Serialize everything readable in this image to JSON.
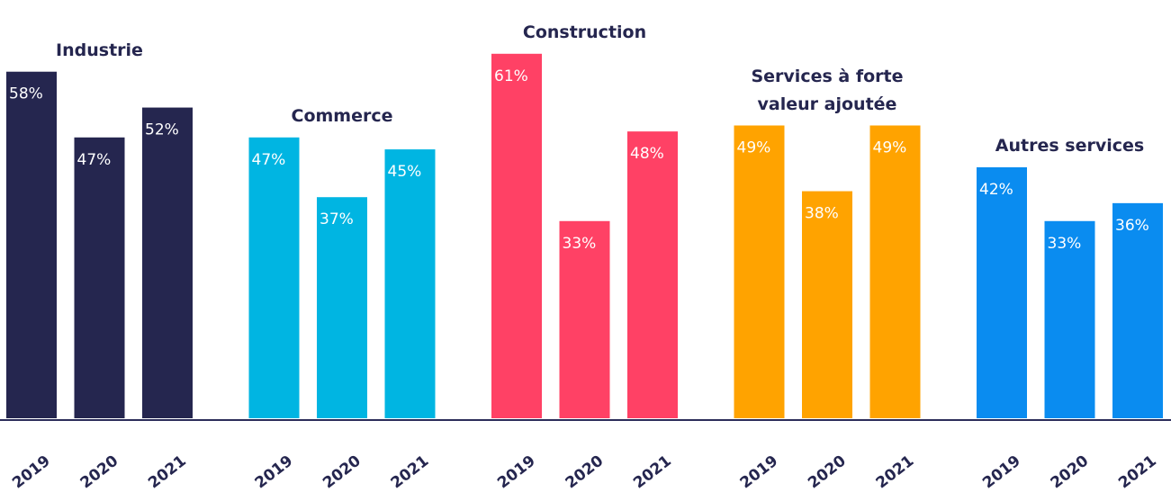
{
  "chart_data": {
    "type": "bar",
    "ylim": [
      0,
      70
    ],
    "series": [
      {
        "name": "Industrie",
        "color": "#25264f",
        "categories": [
          "2019",
          "2020",
          "2021"
        ],
        "values": [
          58,
          47,
          52
        ],
        "value_labels": [
          "58%",
          "47%",
          "52%"
        ]
      },
      {
        "name": "Commerce",
        "color": "#00b5e2",
        "categories": [
          "2019",
          "2020",
          "2021"
        ],
        "values": [
          47,
          37,
          45
        ],
        "value_labels": [
          "47%",
          "37%",
          "45%"
        ]
      },
      {
        "name": "Construction",
        "color": "#ff4165",
        "categories": [
          "2019",
          "2020",
          "2021"
        ],
        "values": [
          61,
          33,
          48
        ],
        "value_labels": [
          "61%",
          "33%",
          "48%"
        ]
      },
      {
        "name": "Services à forte valeur ajoutée",
        "color": "#ffa300",
        "categories": [
          "2019",
          "2020",
          "2021"
        ],
        "values": [
          49,
          38,
          49
        ],
        "value_labels": [
          "49%",
          "38%",
          "49%"
        ]
      },
      {
        "name": "Autres services",
        "color": "#0a8cf0",
        "categories": [
          "2019",
          "2020",
          "2021"
        ],
        "values": [
          42,
          33,
          36
        ],
        "value_labels": [
          "42%",
          "33%",
          "36%"
        ]
      }
    ]
  }
}
